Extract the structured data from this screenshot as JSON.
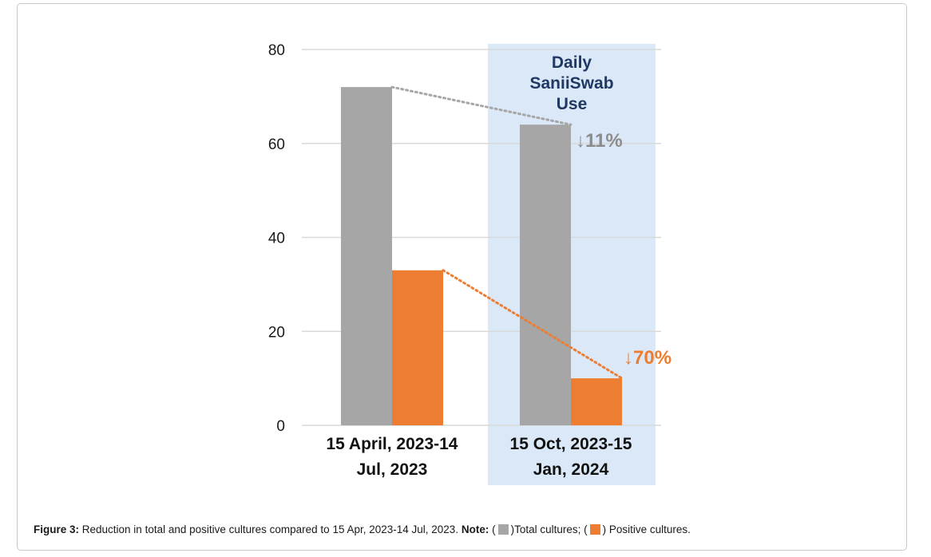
{
  "chart_data": {
    "type": "bar",
    "categories": [
      [
        "15 April, 2023-14",
        "Jul, 2023"
      ],
      [
        "15 Oct, 2023-15",
        "Jan, 2024"
      ]
    ],
    "series": [
      {
        "name": "Total cultures",
        "values": [
          72,
          64
        ],
        "color": "#a6a6a6"
      },
      {
        "name": "Positive cultures",
        "values": [
          33,
          10
        ],
        "color": "#ed7d31"
      }
    ],
    "ylim": [
      0,
      80
    ],
    "yticks": [
      "0",
      "20",
      "40",
      "60",
      "80"
    ],
    "grid": true,
    "highlight": {
      "category_index": 1,
      "label": [
        "Daily",
        "SaniiSwab",
        "Use"
      ],
      "color": "#dbe8f7",
      "label_color": "#1f3864"
    },
    "annotations": [
      {
        "series_index": 0,
        "text": "↓11%",
        "color": "#8c8c8c"
      },
      {
        "series_index": 1,
        "text": "↓70%",
        "color": "#ed7d31"
      }
    ]
  },
  "caption": {
    "figure_label": "Figure 3:",
    "text": " Reduction in total and positive cultures compared to 15 Apr, 2023-14 Jul, 2023. ",
    "note_label": "Note:",
    "open1": " (",
    "legend_total": ")Total cultures; (",
    "legend_positive": ") Positive cultures."
  }
}
